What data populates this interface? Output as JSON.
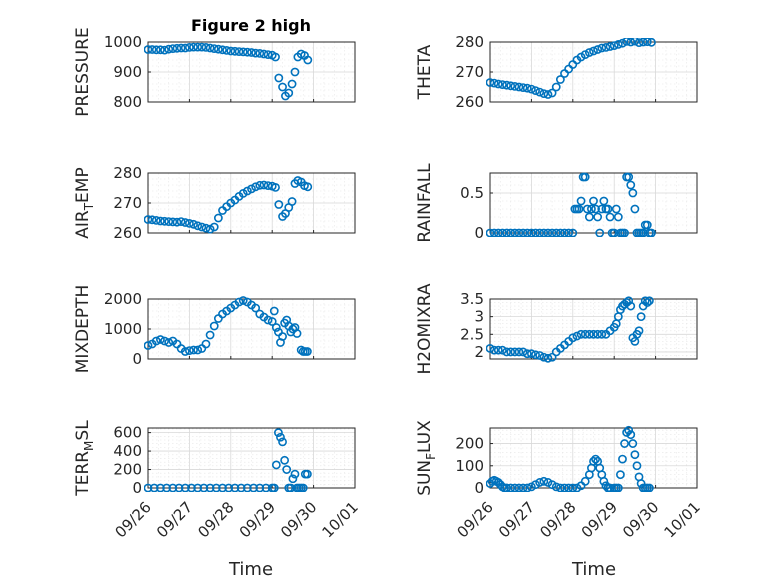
{
  "figure": {
    "title": "Figure 2 high",
    "xlabel": "Time"
  },
  "colors": {
    "series": "#0072BD",
    "axis": "#262626",
    "grid": "#d9d9d9"
  },
  "chart_data": [
    {
      "type": "scatter",
      "name": "PRESSURE",
      "ylabel": "PRESSURE",
      "xlim": [
        0,
        5
      ],
      "ylim": [
        800,
        1000
      ],
      "yticks": [
        800,
        900,
        1000
      ],
      "xtick_labels": [
        "09/26",
        "09/27",
        "09/28",
        "09/29",
        "09/30",
        "10/01"
      ],
      "x": [
        0.0,
        0.1,
        0.2,
        0.3,
        0.4,
        0.5,
        0.6,
        0.7,
        0.8,
        0.9,
        1.0,
        1.1,
        1.2,
        1.3,
        1.4,
        1.5,
        1.6,
        1.7,
        1.8,
        1.9,
        2.0,
        2.1,
        2.2,
        2.3,
        2.4,
        2.5,
        2.6,
        2.7,
        2.8,
        2.9,
        3.0,
        3.08,
        3.16,
        3.25,
        3.32,
        3.4,
        3.48,
        3.55,
        3.62,
        3.7,
        3.78,
        3.86
      ],
      "y": [
        975,
        975,
        974,
        974,
        973,
        976,
        978,
        979,
        980,
        980,
        982,
        983,
        983,
        983,
        982,
        980,
        978,
        976,
        974,
        972,
        970,
        969,
        968,
        967,
        966,
        965,
        963,
        962,
        960,
        958,
        956,
        950,
        880,
        850,
        820,
        830,
        860,
        900,
        950,
        960,
        955,
        940
      ]
    },
    {
      "type": "scatter",
      "name": "THETA",
      "ylabel": "THETA",
      "xlim": [
        0,
        5
      ],
      "ylim": [
        260,
        280
      ],
      "yticks": [
        260,
        270,
        280
      ],
      "xtick_labels": [
        "09/26",
        "09/27",
        "09/28",
        "09/29",
        "09/30",
        "10/01"
      ],
      "x": [
        0.0,
        0.1,
        0.2,
        0.3,
        0.4,
        0.5,
        0.6,
        0.7,
        0.8,
        0.9,
        1.0,
        1.1,
        1.2,
        1.3,
        1.4,
        1.5,
        1.6,
        1.7,
        1.8,
        1.9,
        2.0,
        2.1,
        2.2,
        2.3,
        2.4,
        2.5,
        2.6,
        2.7,
        2.8,
        2.9,
        3.0,
        3.1,
        3.2,
        3.3,
        3.4,
        3.5,
        3.6,
        3.7,
        3.8,
        3.9
      ],
      "y": [
        266.5,
        266.3,
        266,
        265.8,
        265.6,
        265.4,
        265.2,
        265,
        264.8,
        264.6,
        264.3,
        263.8,
        263.3,
        262.8,
        262.5,
        263,
        265,
        267.5,
        269.5,
        271,
        272.5,
        274,
        275,
        275.8,
        276.5,
        277,
        277.5,
        278,
        278.2,
        278.5,
        278.8,
        279.2,
        279.6,
        280.2,
        280,
        280.3,
        279.8,
        280,
        280.1,
        279.9
      ]
    },
    {
      "type": "scatter",
      "name": "AIR_TEMP",
      "ylabel": "AIR_TEMP",
      "xlim": [
        0,
        5
      ],
      "ylim": [
        260,
        280
      ],
      "yticks": [
        260,
        270,
        280
      ],
      "xtick_labels": [
        "09/26",
        "09/27",
        "09/28",
        "09/29",
        "09/30",
        "10/01"
      ],
      "x": [
        0.0,
        0.1,
        0.2,
        0.3,
        0.4,
        0.5,
        0.6,
        0.7,
        0.8,
        0.9,
        1.0,
        1.1,
        1.2,
        1.3,
        1.4,
        1.5,
        1.6,
        1.7,
        1.8,
        1.9,
        2.0,
        2.1,
        2.2,
        2.3,
        2.4,
        2.5,
        2.6,
        2.7,
        2.8,
        2.9,
        3.0,
        3.08,
        3.16,
        3.25,
        3.32,
        3.4,
        3.48,
        3.55,
        3.62,
        3.7,
        3.78,
        3.86
      ],
      "y": [
        264.5,
        264.4,
        264.2,
        264,
        263.9,
        263.8,
        263.7,
        263.6,
        263.8,
        263.5,
        263.2,
        262.9,
        262.4,
        262,
        261.6,
        261.3,
        262,
        265,
        267.5,
        268.8,
        270,
        271,
        272.2,
        273.2,
        274,
        274.7,
        275.4,
        275.9,
        276,
        275.8,
        275.6,
        275.2,
        269.5,
        265.5,
        266.5,
        268.5,
        270.5,
        276.5,
        277.5,
        277,
        275.8,
        275.4
      ]
    },
    {
      "type": "scatter",
      "name": "RAINFALL",
      "ylabel": "RAINFALL",
      "xlim": [
        0,
        5
      ],
      "ylim": [
        0,
        0.75
      ],
      "yticks": [
        0,
        0.5
      ],
      "xtick_labels": [
        "09/26",
        "09/27",
        "09/28",
        "09/29",
        "09/30",
        "10/01"
      ],
      "x": [
        0.0,
        0.1,
        0.2,
        0.3,
        0.4,
        0.5,
        0.6,
        0.7,
        0.8,
        0.9,
        1.0,
        1.1,
        1.2,
        1.3,
        1.4,
        1.5,
        1.6,
        1.7,
        1.8,
        1.9,
        2.0,
        2.05,
        2.1,
        2.15,
        2.2,
        2.25,
        2.3,
        2.35,
        2.4,
        2.45,
        2.5,
        2.55,
        2.6,
        2.65,
        2.7,
        2.75,
        2.8,
        2.85,
        2.9,
        2.95,
        3.0,
        3.05,
        3.1,
        3.15,
        3.2,
        3.25,
        3.3,
        3.35,
        3.4,
        3.45,
        3.5,
        3.55,
        3.6,
        3.65,
        3.7,
        3.75,
        3.8,
        3.85,
        3.9
      ],
      "y": [
        0,
        0,
        0,
        0,
        0,
        0,
        0,
        0,
        0,
        0,
        0,
        0,
        0,
        0,
        0,
        0,
        0,
        0,
        0,
        0,
        0,
        0.3,
        0.3,
        0.3,
        0.4,
        0.7,
        0.7,
        0.3,
        0.2,
        0.3,
        0.4,
        0.3,
        0.2,
        0,
        0.3,
        0.4,
        0.3,
        0.3,
        0.2,
        0,
        0,
        0.3,
        0.2,
        0,
        0,
        0,
        0.7,
        0.7,
        0.6,
        0.5,
        0.3,
        0,
        0,
        0,
        0,
        0.1,
        0.1,
        0,
        0
      ]
    },
    {
      "type": "scatter",
      "name": "MIXDEPTH",
      "ylabel": "MIXDEPTH",
      "xlim": [
        0,
        5
      ],
      "ylim": [
        0,
        2000
      ],
      "yticks": [
        0,
        1000,
        2000
      ],
      "xtick_labels": [
        "09/26",
        "09/27",
        "09/28",
        "09/29",
        "09/30",
        "10/01"
      ],
      "x": [
        0.0,
        0.1,
        0.2,
        0.3,
        0.4,
        0.5,
        0.6,
        0.7,
        0.8,
        0.9,
        1.0,
        1.1,
        1.2,
        1.3,
        1.4,
        1.5,
        1.6,
        1.7,
        1.8,
        1.9,
        2.0,
        2.1,
        2.2,
        2.3,
        2.4,
        2.5,
        2.6,
        2.7,
        2.8,
        2.9,
        3.0,
        3.05,
        3.1,
        3.15,
        3.2,
        3.25,
        3.3,
        3.35,
        3.4,
        3.45,
        3.5,
        3.55,
        3.6,
        3.7,
        3.75,
        3.8,
        3.85
      ],
      "y": [
        450,
        500,
        600,
        650,
        600,
        550,
        600,
        500,
        350,
        250,
        280,
        300,
        300,
        350,
        500,
        800,
        1100,
        1350,
        1500,
        1600,
        1700,
        1800,
        1900,
        1950,
        1900,
        1800,
        1700,
        1500,
        1400,
        1300,
        1250,
        1600,
        1050,
        900,
        550,
        750,
        1200,
        1300,
        1100,
        900,
        1000,
        1050,
        850,
        300,
        250,
        250,
        250
      ]
    },
    {
      "type": "scatter",
      "name": "H2OMIXRA",
      "ylabel": "H2OMIXRA",
      "xlim": [
        0,
        5
      ],
      "ylim": [
        1.8,
        3.5
      ],
      "yticks": [
        2,
        2.5,
        3,
        3.5
      ],
      "xtick_labels": [
        "09/26",
        "09/27",
        "09/28",
        "09/29",
        "09/30",
        "10/01"
      ],
      "x": [
        0.0,
        0.1,
        0.2,
        0.3,
        0.4,
        0.5,
        0.6,
        0.7,
        0.8,
        0.9,
        1.0,
        1.1,
        1.2,
        1.3,
        1.4,
        1.5,
        1.6,
        1.7,
        1.8,
        1.9,
        2.0,
        2.1,
        2.2,
        2.3,
        2.4,
        2.5,
        2.6,
        2.7,
        2.8,
        2.9,
        3.0,
        3.05,
        3.1,
        3.15,
        3.2,
        3.25,
        3.3,
        3.35,
        3.4,
        3.45,
        3.5,
        3.55,
        3.6,
        3.65,
        3.7,
        3.75,
        3.8,
        3.85
      ],
      "y": [
        2.1,
        2.05,
        2.05,
        2.05,
        2.0,
        2.0,
        2.0,
        2.0,
        2.0,
        1.95,
        1.95,
        1.92,
        1.9,
        1.85,
        1.82,
        1.85,
        2.0,
        2.1,
        2.2,
        2.3,
        2.4,
        2.45,
        2.5,
        2.5,
        2.5,
        2.5,
        2.5,
        2.5,
        2.5,
        2.6,
        2.7,
        2.8,
        3.0,
        3.2,
        3.3,
        3.35,
        3.4,
        3.45,
        3.3,
        2.4,
        2.3,
        2.5,
        2.6,
        3.0,
        3.3,
        3.45,
        3.4,
        3.45
      ]
    },
    {
      "type": "scatter",
      "name": "TERR_MSL",
      "ylabel": "TERR_MSL",
      "xlim": [
        0,
        5
      ],
      "ylim": [
        0,
        650
      ],
      "yticks": [
        0,
        200,
        400,
        600
      ],
      "xtick_labels": [
        "09/26",
        "09/27",
        "09/28",
        "09/29",
        "09/30",
        "10/01"
      ],
      "x": [
        0.0,
        0.15,
        0.3,
        0.45,
        0.6,
        0.75,
        0.9,
        1.05,
        1.2,
        1.35,
        1.5,
        1.65,
        1.8,
        1.95,
        2.1,
        2.25,
        2.4,
        2.55,
        2.7,
        2.85,
        3.0,
        3.05,
        3.1,
        3.15,
        3.2,
        3.25,
        3.3,
        3.35,
        3.4,
        3.45,
        3.5,
        3.55,
        3.6,
        3.65,
        3.7,
        3.75,
        3.8,
        3.85
      ],
      "y": [
        0,
        0,
        0,
        0,
        0,
        0,
        0,
        0,
        0,
        0,
        0,
        0,
        0,
        0,
        0,
        0,
        0,
        0,
        0,
        0,
        0,
        0,
        250,
        600,
        550,
        500,
        300,
        200,
        0,
        0,
        100,
        150,
        0,
        0,
        0,
        0,
        150,
        150
      ]
    },
    {
      "type": "scatter",
      "name": "SUN_FLUX",
      "ylabel": "SUN_FLUX",
      "xlim": [
        0,
        5
      ],
      "ylim": [
        0,
        270
      ],
      "yticks": [
        0,
        100,
        200
      ],
      "xtick_labels": [
        "09/26",
        "09/27",
        "09/28",
        "09/29",
        "09/30",
        "10/01"
      ],
      "x": [
        0.0,
        0.05,
        0.1,
        0.15,
        0.2,
        0.25,
        0.3,
        0.35,
        0.4,
        0.5,
        0.6,
        0.7,
        0.8,
        0.9,
        1.0,
        1.1,
        1.2,
        1.3,
        1.4,
        1.5,
        1.6,
        1.7,
        1.8,
        1.9,
        2.0,
        2.1,
        2.2,
        2.3,
        2.4,
        2.45,
        2.5,
        2.55,
        2.6,
        2.65,
        2.7,
        2.75,
        2.8,
        2.85,
        2.9,
        3.0,
        3.05,
        3.1,
        3.15,
        3.2,
        3.25,
        3.3,
        3.35,
        3.4,
        3.45,
        3.5,
        3.55,
        3.6,
        3.65,
        3.7,
        3.75,
        3.8,
        3.85
      ],
      "y": [
        20,
        30,
        35,
        30,
        25,
        15,
        5,
        0,
        0,
        0,
        0,
        0,
        0,
        0,
        5,
        15,
        25,
        30,
        25,
        15,
        5,
        0,
        0,
        0,
        0,
        0,
        10,
        30,
        60,
        90,
        120,
        130,
        120,
        90,
        60,
        30,
        10,
        0,
        0,
        0,
        0,
        0,
        60,
        130,
        200,
        250,
        260,
        240,
        200,
        150,
        100,
        50,
        20,
        0,
        0,
        0,
        0
      ]
    }
  ]
}
